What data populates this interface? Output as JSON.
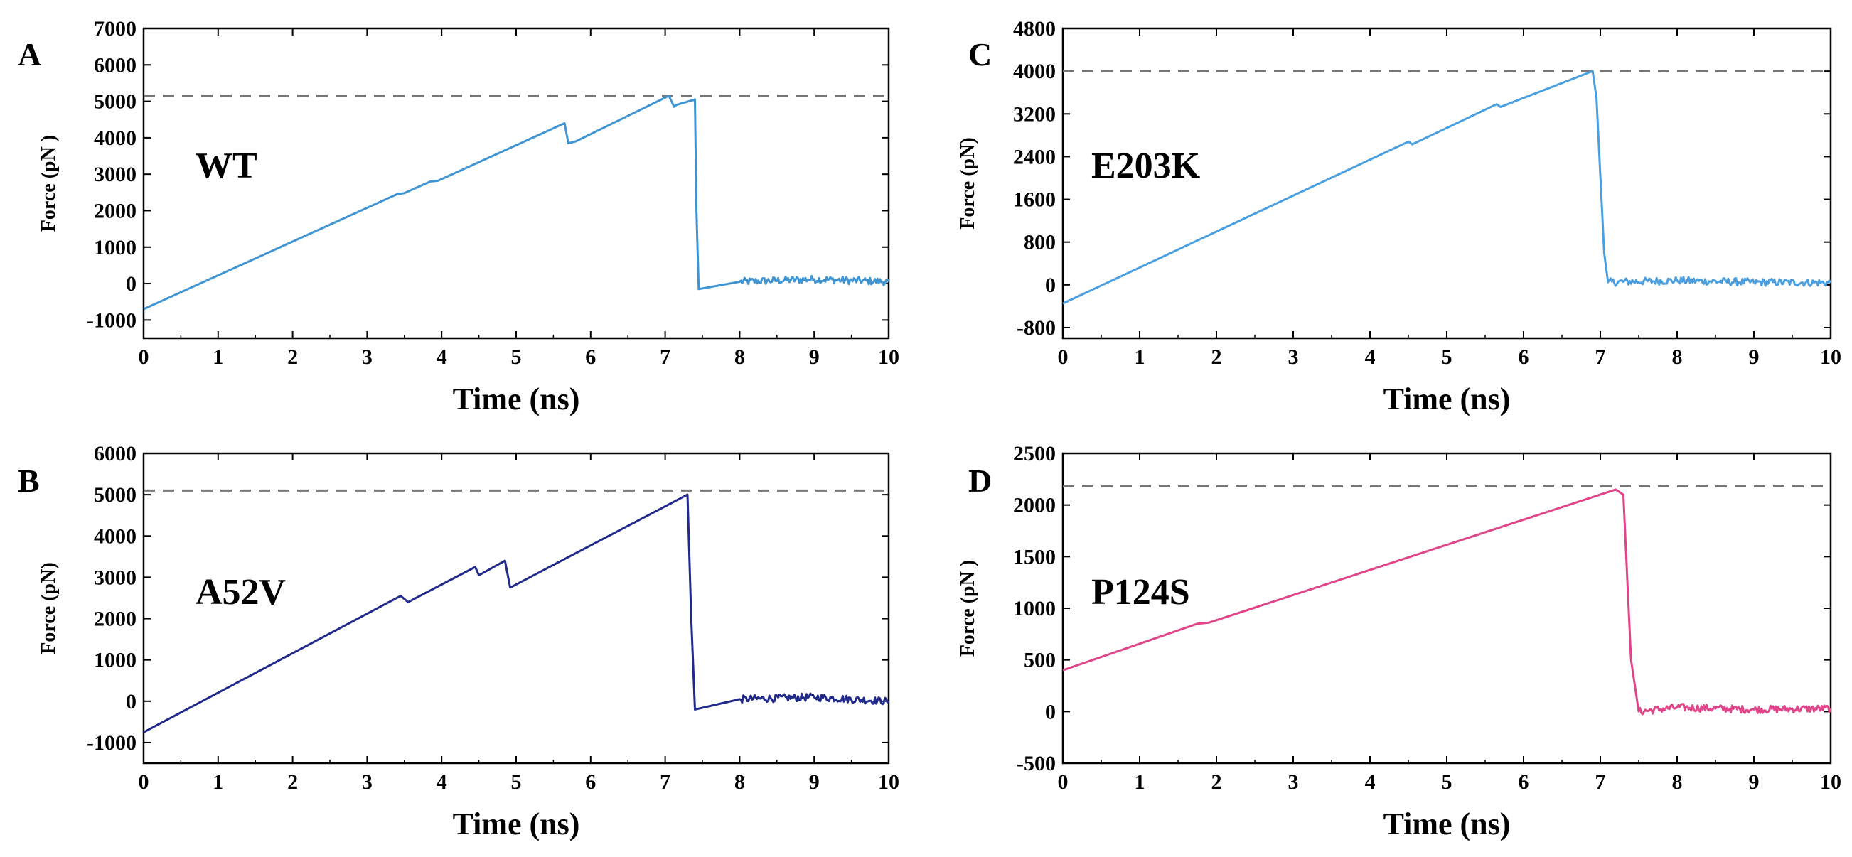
{
  "chart_data": [
    {
      "type": "line",
      "panel": "A",
      "label": "WT",
      "color": "#3f95d3",
      "xlabel": "Time (ns)",
      "ylabel": "Force (pN )",
      "xlim": [
        0,
        10
      ],
      "ylim": [
        -1500,
        7000
      ],
      "xticks": [
        0,
        1,
        2,
        3,
        4,
        5,
        6,
        7,
        8,
        9,
        10
      ],
      "yticks": [
        -1000,
        0,
        1000,
        2000,
        3000,
        4000,
        5000,
        6000,
        7000
      ],
      "reference_line": 5150,
      "series": [
        {
          "name": "WT",
          "x": [
            0,
            3.4,
            3.5,
            3.85,
            3.95,
            5.65,
            5.7,
            5.8,
            7.05,
            7.12,
            7.15,
            7.4,
            7.42,
            7.45,
            8,
            9,
            10
          ],
          "y": [
            -700,
            2450,
            2480,
            2800,
            2820,
            4400,
            3850,
            3900,
            5150,
            4850,
            4900,
            5050,
            2000,
            -150,
            50,
            120,
            50
          ]
        }
      ]
    },
    {
      "type": "line",
      "panel": "C",
      "label": "E203K",
      "color": "#4a9fe0",
      "xlabel": "Time (ns)",
      "ylabel": "Force (pN)",
      "xlim": [
        0,
        10
      ],
      "ylim": [
        -1000,
        4800
      ],
      "xticks": [
        0,
        1,
        2,
        3,
        4,
        5,
        6,
        7,
        8,
        9,
        10
      ],
      "yticks": [
        -800,
        0,
        800,
        1600,
        2400,
        3200,
        4000,
        4800
      ],
      "reference_line": 4000,
      "series": [
        {
          "name": "E203K",
          "x": [
            0,
            4.5,
            4.55,
            5.65,
            5.7,
            6.9,
            6.95,
            7.05,
            7.1,
            8,
            9,
            10
          ],
          "y": [
            -350,
            2680,
            2630,
            3380,
            3330,
            4000,
            3500,
            600,
            50,
            80,
            50,
            40
          ]
        }
      ]
    },
    {
      "type": "line",
      "panel": "B",
      "label": "A52V",
      "color": "#1f2a8a",
      "xlabel": "Time (ns)",
      "ylabel": "Force (pN)",
      "xlim": [
        0,
        10
      ],
      "ylim": [
        -1500,
        6000
      ],
      "xticks": [
        0,
        1,
        2,
        3,
        4,
        5,
        6,
        7,
        8,
        9,
        10
      ],
      "yticks": [
        -1000,
        0,
        1000,
        2000,
        3000,
        4000,
        5000,
        6000
      ],
      "reference_line": 5100,
      "series": [
        {
          "name": "A52V",
          "x": [
            0,
            3.45,
            3.55,
            4.45,
            4.5,
            4.85,
            4.92,
            7.3,
            7.35,
            7.4,
            8,
            9,
            10
          ],
          "y": [
            -750,
            2550,
            2400,
            3250,
            3050,
            3400,
            2750,
            5000,
            2000,
            -200,
            50,
            100,
            0
          ]
        }
      ]
    },
    {
      "type": "line",
      "panel": "D",
      "label": "P124S",
      "color": "#e0458a",
      "xlabel": "Time (ns)",
      "ylabel": "Force (pN )",
      "xlim": [
        0,
        10
      ],
      "ylim": [
        -500,
        2500
      ],
      "xticks": [
        0,
        1,
        2,
        3,
        4,
        5,
        6,
        7,
        8,
        9,
        10
      ],
      "yticks": [
        -500,
        0,
        500,
        1000,
        1500,
        2000,
        2500
      ],
      "reference_line": 2180,
      "series": [
        {
          "name": "P124S",
          "x": [
            0,
            1.75,
            1.9,
            7.2,
            7.3,
            7.4,
            7.5,
            8,
            9,
            10
          ],
          "y": [
            400,
            850,
            860,
            2150,
            2100,
            500,
            0,
            40,
            20,
            30
          ]
        }
      ]
    }
  ]
}
